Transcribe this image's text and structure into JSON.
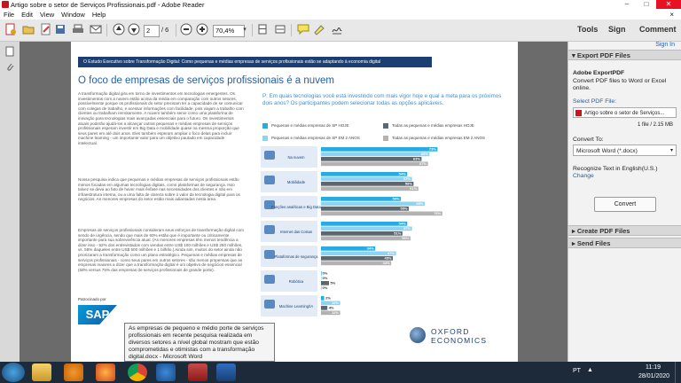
{
  "window": {
    "title": "Artigo sobre o setor de Serviços Profissionais.pdf - Adobe Reader",
    "min": "–",
    "max": "□",
    "close": "✕"
  },
  "menu": [
    "File",
    "Edit",
    "View",
    "Window",
    "Help"
  ],
  "menu_close": "×",
  "toolbar": {
    "page_current": "2",
    "page_total": "/ 6",
    "zoom": "70,4%",
    "tabs": [
      "Tools",
      "Sign",
      "Comment"
    ]
  },
  "document": {
    "banner": "O Estudo Executivo sobre Transformação Digital: Como pequenas e médias empresas de serviços profissionais estão se adaptando à economia digital",
    "heading": "O foco de empresas de serviços profissionais é a nuvem",
    "para1": "A transformação digital gira em torno de investimentos em tecnologias emergentes. Os investimentos com a nuvem estão acima da média em comparação com outros setores, possivelmente porque os profissionais do setor precisam ter a capacidade de se comunicar com colegas de trabalho, e acessar informações com facilidade, pois viajam a trabalho com clientes ou trabalham remotamente. A nuvem também serve como uma plataforma de inovação para tecnologias mais avançadas essenciais para o futuro. Os investimentos atuais poderão ajudá-los a alcançar outras pequenas e médias empresas de serviços profissionais esperam investir em Big Data e mobilidade quase na mesma proporção que seus pares em até dois anos. Eles também esperam ampliar o foco delas para incluir machine learning - um importante valor para um objetivo pautado em capacidade intelectual.",
    "para2": "Nossa pesquisa indica que pequenas e médias empresas de serviços profissionais estão menos focadas em algumas tecnologias digitais, como plataformas de segurança. Isso talvez se deva ao fato de haver mais ênfase nas necessidades dos clientes e não em infraestrutura interna, ou a uma falta de clareza sobre o valor da tecnologia digital para os negócios. As menores empresas do setor estão mais adiantadas nesta área.",
    "para3": "Empresas de serviços profissionais consideram seus esforços de transformação digital com sendo de urgência, sendo que mais de 60% estão que é importante ou criticamente importante para sua sobrevivência atual. (As menores empresas têm menos tendência a dizer isso - 52% dos entrevistados com vendas entre US$ 100 milhões e US$ 250 milhões, vs. 58% daqueles entre US$ 500 milhões e 1 bilhão.) Ainda sim, muitos do setor ainda não priorizaram a transformação como um plano estratégico. Pequenas e médias empresas de serviços profissionais - como seus pares em outros setores - são menos propensas que as empresas maiores a dizer que a transformação digital é um objetivo de negócios essencial (58% versus 75% das empresas de serviços profissionais de grande porte).",
    "question": "P: Em quais tecnologias você está investindo com mais vigor hoje e qual a meta para os próximos dois anos? Os participantes podem selecionar todas as opções aplicáveis.",
    "legend": [
      {
        "label": "Pequenas e médias empresas de SP HOJE",
        "color": "#29abe2"
      },
      {
        "label": "Todas as pequenas e médias empresas HOJE",
        "color": "#5d6770"
      },
      {
        "label": "Pequenas e médias empresas de SP EM 2 ANOS",
        "color": "#8fd3f2"
      },
      {
        "label": "Todas as pequenas e médias empresas EM 2 ANOS",
        "color": "#b2b2b2"
      }
    ],
    "sponsor_label": "Patrocinado por",
    "sponsor_logo": "SAP",
    "oxford_line1": "OXFORD",
    "oxford_line2": "ECONOMICS"
  },
  "chart_data": {
    "type": "bar",
    "categories": [
      "Na nuvem",
      "Mobilidade",
      "Funções analíticas e Big Data",
      "Internet das Coisas",
      "Plataformas de segurança",
      "Robótica",
      "Machine Learning/IA"
    ],
    "series": [
      {
        "name": "Pequenas e médias empresas de SP HOJE",
        "values": [
          73,
          54,
          50,
          54,
          34,
          0,
          2
        ]
      },
      {
        "name": "Pequenas e médias empresas de SP EM 2 ANOS",
        "values": [
          68,
          57,
          65,
          57,
          47,
          0,
          12
        ]
      },
      {
        "name": "Todas as pequenas e médias empresas HOJE",
        "values": [
          63,
          58,
          55,
          51,
          45,
          5,
          4
        ]
      },
      {
        "name": "Todas as pequenas e médias empresas EM 2 ANOS",
        "values": [
          67,
          61,
          76,
          56,
          44,
          0,
          12
        ]
      }
    ],
    "value_format": "{v}%",
    "colors": [
      "#29abe2",
      "#8fd3f2",
      "#5d6770",
      "#b2b2b2"
    ],
    "xlim": [
      0,
      100
    ]
  },
  "right_panel": {
    "sign_in": "Sign In",
    "export_header": "▾ Export PDF Files",
    "export_title": "Adobe ExportPDF",
    "export_desc": "Convert PDF files to Word or Excel online.",
    "select_label": "Select PDF File:",
    "selected_file": "Artigo sobre o setor de Serviços...",
    "file_info": "1 file / 2.15 MB",
    "convert_to_label": "Convert To:",
    "convert_to_value": "Microsoft Word (*.docx)",
    "recognize": "Recognize Text in English(U.S.)",
    "change": "Change",
    "convert_button": "Convert",
    "create_header": "▸ Create PDF Files",
    "send_header": "▸ Send Files"
  },
  "tooltip": "As empresas de pequeno e médio porte de serviços profissionais em recente pesquisa realizada em diversos setores a nível global mostram que estão comprometidas e otimistas com a transformação digital.docx - Microsoft Word",
  "taskbar": {
    "lang": "PT",
    "time": "11:19",
    "date": "28/01/2020"
  }
}
